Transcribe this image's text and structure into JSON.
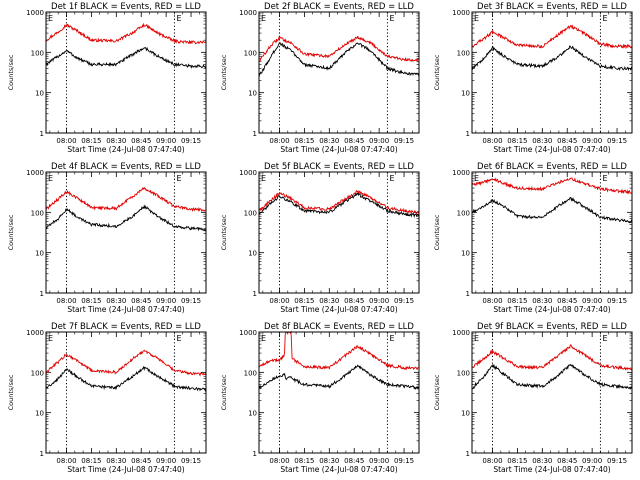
{
  "figure": {
    "panel_titles": [
      "Det 1f BLACK = Events, RED = LLD",
      "Det 2f BLACK = Events, RED = LLD",
      "Det 3f BLACK = Events, RED = LLD",
      "Det 4f BLACK = Events, RED = LLD",
      "Det 5f BLACK = Events, RED = LLD",
      "Det 6f BLACK = Events, RED = LLD",
      "Det 7f BLACK = Events, RED = LLD",
      "Det 8f BLACK = Events, RED = LLD",
      "Det 9f BLACK = Events, RED = LLD"
    ],
    "ylabel": "Counts/sec",
    "xlabel": "Start Time (24-Jul-08 07:47:40)",
    "x_tick_labels": [
      "08:00",
      "08:15",
      "08:30",
      "08:45",
      "09:00",
      "09:15"
    ],
    "y_tick_labels": [
      "1",
      "10",
      "100",
      "1000"
    ],
    "marker_label": "E",
    "colors": {
      "events": "#000000",
      "lld": "#e00000"
    }
  },
  "chart_data": [
    {
      "type": "line",
      "title": "Det 1f BLACK = Events, RED = LLD",
      "xlabel": "Start Time (24-Jul-08 07:47:40)",
      "ylabel": "Counts/sec",
      "xlim": [
        "07:47:40",
        "09:24:00"
      ],
      "ylim": [
        1,
        1000
      ],
      "y_scale": "log",
      "x_ticks": [
        "08:00",
        "08:15",
        "08:30",
        "08:45",
        "09:00",
        "09:15"
      ],
      "vlines": [
        "08:00",
        "09:05"
      ],
      "x": [
        "07:47:40",
        "07:55",
        "08:00",
        "08:07",
        "08:15",
        "08:30",
        "08:40",
        "08:47",
        "08:55",
        "09:05",
        "09:15",
        "09:22"
      ],
      "series": [
        {
          "color": "#e00000",
          "values": [
            200,
            320,
            480,
            330,
            200,
            190,
            310,
            480,
            300,
            190,
            175,
            180
          ]
        },
        {
          "color": "#000000",
          "values": [
            50,
            80,
            110,
            70,
            50,
            50,
            90,
            130,
            80,
            50,
            45,
            45
          ]
        }
      ]
    },
    {
      "type": "line",
      "title": "Det 2f BLACK = Events, RED = LLD",
      "xlabel": "Start Time (24-Jul-08 07:47:40)",
      "ylabel": "Counts/sec",
      "xlim": [
        "07:47:40",
        "09:24:00"
      ],
      "ylim": [
        1,
        1000
      ],
      "y_scale": "log",
      "x_ticks": [
        "08:00",
        "08:15",
        "08:30",
        "08:45",
        "09:00",
        "09:15"
      ],
      "vlines": [
        "08:00",
        "09:05"
      ],
      "x": [
        "07:47:40",
        "07:55",
        "08:00",
        "08:07",
        "08:15",
        "08:30",
        "08:40",
        "08:47",
        "08:55",
        "09:05",
        "09:15",
        "09:22"
      ],
      "series": [
        {
          "color": "#e00000",
          "values": [
            60,
            150,
            230,
            170,
            90,
            80,
            160,
            240,
            170,
            80,
            65,
            65
          ]
        },
        {
          "color": "#000000",
          "values": [
            25,
            80,
            170,
            110,
            50,
            40,
            100,
            170,
            110,
            40,
            30,
            28
          ]
        }
      ]
    },
    {
      "type": "line",
      "title": "Det 3f BLACK = Events, RED = LLD",
      "xlabel": "Start Time (24-Jul-08 07:47:40)",
      "ylabel": "Counts/sec",
      "xlim": [
        "07:47:40",
        "09:24:00"
      ],
      "ylim": [
        1,
        1000
      ],
      "y_scale": "log",
      "x_ticks": [
        "08:00",
        "08:15",
        "08:30",
        "08:45",
        "09:00",
        "09:15"
      ],
      "vlines": [
        "08:00",
        "09:05"
      ],
      "x": [
        "07:47:40",
        "07:55",
        "08:00",
        "08:07",
        "08:15",
        "08:30",
        "08:40",
        "08:47",
        "08:55",
        "09:05",
        "09:15",
        "09:22"
      ],
      "series": [
        {
          "color": "#e00000",
          "values": [
            140,
            220,
            320,
            230,
            150,
            140,
            280,
            450,
            300,
            160,
            140,
            140
          ]
        },
        {
          "color": "#000000",
          "values": [
            40,
            70,
            130,
            80,
            50,
            45,
            80,
            140,
            80,
            45,
            40,
            40
          ]
        }
      ]
    },
    {
      "type": "line",
      "title": "Det 4f BLACK = Events, RED = LLD",
      "xlabel": "Start Time (24-Jul-08 07:47:40)",
      "ylabel": "Counts/sec",
      "xlim": [
        "07:47:40",
        "09:24:00"
      ],
      "ylim": [
        1,
        1000
      ],
      "y_scale": "log",
      "x_ticks": [
        "08:00",
        "08:15",
        "08:30",
        "08:45",
        "09:00",
        "09:15"
      ],
      "vlines": [
        "08:00",
        "09:05"
      ],
      "x": [
        "07:47:40",
        "07:55",
        "08:00",
        "08:07",
        "08:15",
        "08:30",
        "08:40",
        "08:47",
        "08:55",
        "09:05",
        "09:15",
        "09:22"
      ],
      "series": [
        {
          "color": "#e00000",
          "values": [
            120,
            210,
            330,
            220,
            130,
            125,
            250,
            400,
            260,
            140,
            120,
            115
          ]
        },
        {
          "color": "#000000",
          "values": [
            40,
            70,
            120,
            75,
            50,
            45,
            80,
            140,
            80,
            45,
            40,
            38
          ]
        }
      ]
    },
    {
      "type": "line",
      "title": "Det 5f BLACK = Events, RED = LLD",
      "xlabel": "Start Time (24-Jul-08 07:47:40)",
      "ylabel": "Counts/sec",
      "xlim": [
        "07:47:40",
        "09:24:00"
      ],
      "ylim": [
        1,
        1000
      ],
      "y_scale": "log",
      "x_ticks": [
        "08:00",
        "08:15",
        "08:30",
        "08:45",
        "09:00",
        "09:15"
      ],
      "vlines": [
        "08:00",
        "09:05"
      ],
      "x": [
        "07:47:40",
        "07:55",
        "08:00",
        "08:07",
        "08:15",
        "08:30",
        "08:40",
        "08:47",
        "08:55",
        "09:05",
        "09:15",
        "09:22"
      ],
      "series": [
        {
          "color": "#e00000",
          "values": [
            110,
            200,
            300,
            220,
            130,
            120,
            220,
            330,
            230,
            130,
            110,
            100
          ]
        },
        {
          "color": "#000000",
          "values": [
            90,
            170,
            250,
            180,
            110,
            100,
            190,
            280,
            190,
            110,
            90,
            85
          ]
        }
      ]
    },
    {
      "type": "line",
      "title": "Det 6f BLACK = Events, RED = LLD",
      "xlabel": "Start Time (24-Jul-08 07:47:40)",
      "ylabel": "Counts/sec",
      "xlim": [
        "07:47:40",
        "09:24:00"
      ],
      "ylim": [
        1,
        1000
      ],
      "y_scale": "log",
      "x_ticks": [
        "08:00",
        "08:15",
        "08:30",
        "08:45",
        "09:00",
        "09:15"
      ],
      "vlines": [
        "08:00",
        "09:05"
      ],
      "x": [
        "07:47:40",
        "07:55",
        "08:00",
        "08:07",
        "08:15",
        "08:30",
        "08:40",
        "08:47",
        "08:55",
        "09:05",
        "09:15",
        "09:22"
      ],
      "series": [
        {
          "color": "#e00000",
          "values": [
            480,
            560,
            680,
            520,
            400,
            380,
            550,
            700,
            520,
            380,
            340,
            320
          ]
        },
        {
          "color": "#000000",
          "values": [
            100,
            140,
            200,
            140,
            80,
            75,
            150,
            220,
            140,
            75,
            65,
            60
          ]
        }
      ]
    },
    {
      "type": "line",
      "title": "Det 7f BLACK = Events, RED = LLD",
      "xlabel": "Start Time (24-Jul-08 07:47:40)",
      "ylabel": "Counts/sec",
      "xlim": [
        "07:47:40",
        "09:24:00"
      ],
      "ylim": [
        1,
        1000
      ],
      "y_scale": "log",
      "x_ticks": [
        "08:00",
        "08:15",
        "08:30",
        "08:45",
        "09:00",
        "09:15"
      ],
      "vlines": [
        "08:00",
        "09:05"
      ],
      "x": [
        "07:47:40",
        "07:55",
        "08:00",
        "08:07",
        "08:15",
        "08:30",
        "08:40",
        "08:47",
        "08:55",
        "09:05",
        "09:15",
        "09:22"
      ],
      "series": [
        {
          "color": "#e00000",
          "values": [
            100,
            180,
            280,
            190,
            110,
            100,
            220,
            350,
            220,
            110,
            95,
            90
          ]
        },
        {
          "color": "#000000",
          "values": [
            40,
            70,
            120,
            75,
            45,
            42,
            80,
            130,
            80,
            45,
            40,
            38
          ]
        }
      ]
    },
    {
      "type": "line",
      "title": "Det 8f BLACK = Events, RED = LLD",
      "xlabel": "Start Time (24-Jul-08 07:47:40)",
      "ylabel": "Counts/sec",
      "xlim": [
        "07:47:40",
        "09:24:00"
      ],
      "ylim": [
        1,
        1000
      ],
      "y_scale": "log",
      "x_ticks": [
        "08:00",
        "08:15",
        "08:30",
        "08:45",
        "09:00",
        "09:15"
      ],
      "vlines": [
        "08:00",
        "09:05"
      ],
      "x": [
        "07:47:40",
        "07:55",
        "08:00",
        "08:03",
        "08:03:30",
        "08:07",
        "08:07:30",
        "08:15",
        "08:30",
        "08:40",
        "08:47",
        "08:55",
        "09:05",
        "09:15",
        "09:22"
      ],
      "series": [
        {
          "color": "#e00000",
          "values": [
            140,
            200,
            200,
            260,
            1000,
            1000,
            220,
            140,
            130,
            270,
            450,
            280,
            150,
            130,
            125
          ]
        },
        {
          "color": "#000000",
          "values": [
            40,
            65,
            80,
            90,
            70,
            75,
            70,
            50,
            45,
            85,
            150,
            85,
            50,
            45,
            42
          ]
        }
      ]
    },
    {
      "type": "line",
      "title": "Det 9f BLACK = Events, RED = LLD",
      "xlabel": "Start Time (24-Jul-08 07:47:40)",
      "ylabel": "Counts/sec",
      "xlim": [
        "07:47:40",
        "09:24:00"
      ],
      "ylim": [
        1,
        1000
      ],
      "y_scale": "log",
      "x_ticks": [
        "08:00",
        "08:15",
        "08:30",
        "08:45",
        "09:00",
        "09:15"
      ],
      "vlines": [
        "08:00",
        "09:05"
      ],
      "x": [
        "07:47:40",
        "07:55",
        "08:00",
        "08:07",
        "08:15",
        "08:30",
        "08:40",
        "08:47",
        "08:55",
        "09:05",
        "09:15",
        "09:22"
      ],
      "series": [
        {
          "color": "#e00000",
          "values": [
            130,
            220,
            330,
            220,
            140,
            130,
            270,
            450,
            280,
            150,
            130,
            125
          ]
        },
        {
          "color": "#000000",
          "values": [
            40,
            80,
            150,
            90,
            50,
            45,
            85,
            160,
            90,
            50,
            45,
            42
          ]
        }
      ]
    }
  ]
}
